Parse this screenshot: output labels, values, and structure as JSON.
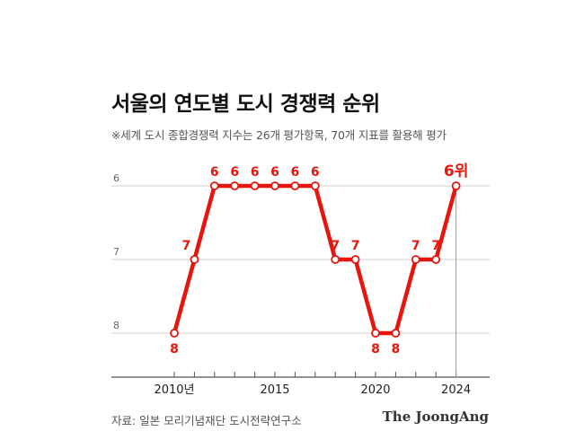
{
  "title": "서울의 연도별 도시 경쟁력 순위",
  "subtitle": "※세계 도시 종합경쟁력 지수는 26개 평가항목, 70개 지표를 활용해 평가",
  "source": "자료: 일본 모리기념재단 도시전략연구소",
  "logo": "The JoongAng",
  "colors": {
    "line": "#e8150c",
    "grid": "#d0d0d0",
    "axis": "#555555",
    "label": "#e8150c"
  },
  "chart_data": {
    "type": "line",
    "title": "서울의 연도별 도시 경쟁력 순위",
    "y_inverted": true,
    "ylim": [
      6,
      8
    ],
    "yticks": [
      "6",
      "7",
      "8"
    ],
    "xlim": [
      2006,
      2027
    ],
    "x_tick_labels": [
      {
        "x": 2010,
        "label": "2010년"
      },
      {
        "x": 2015,
        "label": "2015"
      },
      {
        "x": 2020,
        "label": "2020"
      },
      {
        "x": 2024,
        "label": "2024"
      }
    ],
    "x_minor_ticks": [
      2010,
      2011,
      2012,
      2013,
      2014,
      2015,
      2016,
      2017,
      2018,
      2019,
      2020,
      2021,
      2022,
      2023,
      2024
    ],
    "grid": true,
    "series": [
      {
        "x": [
          2010,
          2011,
          2012,
          2013,
          2014,
          2015,
          2016,
          2017,
          2018,
          2019,
          2020,
          2021,
          2022,
          2023,
          2024
        ],
        "values": [
          8,
          7,
          6,
          6,
          6,
          6,
          6,
          6,
          7,
          7,
          8,
          8,
          7,
          7,
          6
        ],
        "labels": [
          "8",
          "7",
          "6",
          "6",
          "6",
          "6",
          "6",
          "6",
          "7",
          "7",
          "8",
          "8",
          "7",
          "7",
          "6위"
        ],
        "label_position": [
          "below",
          "left",
          "above",
          "above",
          "above",
          "above",
          "above",
          "above",
          "above",
          "above",
          "below",
          "below",
          "above",
          "above",
          "above"
        ]
      }
    ]
  }
}
